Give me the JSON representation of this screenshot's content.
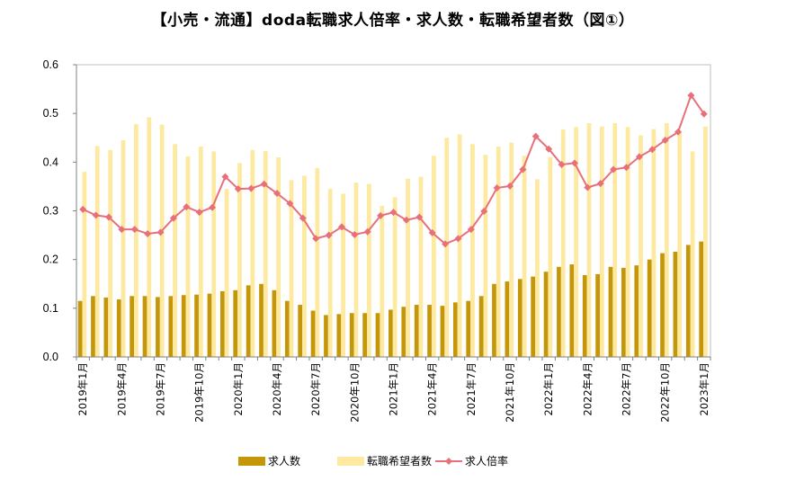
{
  "chart_data": {
    "type": "bar+line",
    "title": "【小売・流通】doda転職求人倍率・求人数・転職希望者数（図①）",
    "ylim": [
      0,
      0.6
    ],
    "yticks": [
      "0.0",
      "0.1",
      "0.2",
      "0.3",
      "0.4",
      "0.5",
      "0.6"
    ],
    "grid": false,
    "legend_position": "bottom",
    "xtick_labels": [
      "2019年1月",
      "2019年4月",
      "2019年7月",
      "2019年10月",
      "2020年1月",
      "2020年4月",
      "2020年7月",
      "2020年10月",
      "2021年1月",
      "2021年4月",
      "2021年7月",
      "2021年10月",
      "2022年1月",
      "2022年4月",
      "2022年7月",
      "2022年10月",
      "2023年1月"
    ],
    "categories": [
      "2019-01",
      "2019-02",
      "2019-03",
      "2019-04",
      "2019-05",
      "2019-06",
      "2019-07",
      "2019-08",
      "2019-09",
      "2019-10",
      "2019-11",
      "2019-12",
      "2020-01",
      "2020-02",
      "2020-03",
      "2020-04",
      "2020-05",
      "2020-06",
      "2020-07",
      "2020-08",
      "2020-09",
      "2020-10",
      "2020-11",
      "2020-12",
      "2021-01",
      "2021-02",
      "2021-03",
      "2021-04",
      "2021-05",
      "2021-06",
      "2021-07",
      "2021-08",
      "2021-09",
      "2021-10",
      "2021-11",
      "2021-12",
      "2022-01",
      "2022-02",
      "2022-03",
      "2022-04",
      "2022-05",
      "2022-06",
      "2022-07",
      "2022-08",
      "2022-09",
      "2022-10",
      "2022-11",
      "2022-12",
      "2023-01"
    ],
    "series": [
      {
        "name": "求人数",
        "kind": "bar",
        "color": "#c4960a",
        "values": [
          0.115,
          0.125,
          0.122,
          0.118,
          0.125,
          0.125,
          0.123,
          0.125,
          0.127,
          0.128,
          0.13,
          0.135,
          0.137,
          0.147,
          0.15,
          0.137,
          0.115,
          0.107,
          0.095,
          0.086,
          0.088,
          0.09,
          0.09,
          0.09,
          0.097,
          0.103,
          0.107,
          0.107,
          0.105,
          0.112,
          0.115,
          0.125,
          0.15,
          0.155,
          0.16,
          0.165,
          0.175,
          0.185,
          0.19,
          0.168,
          0.17,
          0.185,
          0.183,
          0.188,
          0.2,
          0.213,
          0.216,
          0.23,
          0.237
        ]
      },
      {
        "name": "転職希望者数",
        "kind": "bar",
        "color": "#fde9a0",
        "values": [
          0.38,
          0.433,
          0.425,
          0.445,
          0.478,
          0.492,
          0.477,
          0.437,
          0.412,
          0.432,
          0.422,
          0.345,
          0.398,
          0.425,
          0.423,
          0.41,
          0.363,
          0.372,
          0.388,
          0.345,
          0.335,
          0.358,
          0.355,
          0.31,
          0.328,
          0.366,
          0.37,
          0.413,
          0.45,
          0.457,
          0.437,
          0.415,
          0.432,
          0.44,
          0.413,
          0.365,
          0.41,
          0.467,
          0.472,
          0.48,
          0.473,
          0.48,
          0.472,
          0.455,
          0.468,
          0.48,
          0.462,
          0.422,
          0.473
        ]
      },
      {
        "name": "求人倍率",
        "kind": "line",
        "color": "#e8707a",
        "values": [
          0.303,
          0.291,
          0.287,
          0.262,
          0.262,
          0.253,
          0.256,
          0.285,
          0.308,
          0.297,
          0.307,
          0.37,
          0.345,
          0.346,
          0.355,
          0.336,
          0.315,
          0.285,
          0.243,
          0.25,
          0.267,
          0.251,
          0.257,
          0.29,
          0.297,
          0.281,
          0.287,
          0.255,
          0.232,
          0.243,
          0.262,
          0.299,
          0.347,
          0.351,
          0.385,
          0.453,
          0.427,
          0.395,
          0.398,
          0.348,
          0.356,
          0.385,
          0.389,
          0.411,
          0.426,
          0.445,
          0.462,
          0.537,
          0.499
        ]
      }
    ]
  }
}
